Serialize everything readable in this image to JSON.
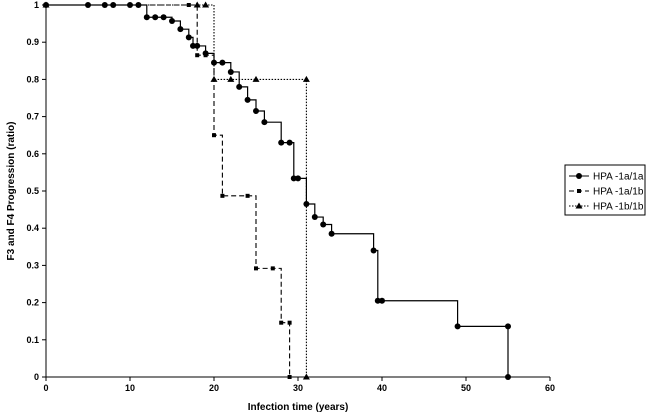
{
  "chart_data": {
    "type": "line",
    "title": "",
    "xlabel": "Infection time (years)",
    "ylabel": "F3 and F4 Progression (ratio)",
    "xlim": [
      0,
      60
    ],
    "ylim": [
      0,
      1
    ],
    "x_ticks": [
      0,
      10,
      20,
      30,
      40,
      50,
      60
    ],
    "y_ticks": [
      0,
      0.1,
      0.2,
      0.3,
      0.4,
      0.5,
      0.6,
      0.7,
      0.8,
      0.9,
      1
    ],
    "grid": false,
    "legend_position": "right",
    "step": true,
    "series": [
      {
        "name": "HPA -1a/1a",
        "line_style": "solid",
        "marker": "circle",
        "color": "#000000",
        "x": [
          0,
          5,
          7,
          8,
          10,
          11,
          12,
          13,
          14,
          15,
          16,
          17,
          17.5,
          18,
          19,
          20,
          21,
          22,
          23,
          24,
          25,
          26,
          28,
          29,
          29.5,
          30,
          31,
          32,
          33,
          34,
          39,
          39.5,
          40,
          49,
          55,
          55
        ],
        "y": [
          1,
          1,
          1,
          1,
          1,
          1,
          0.967,
          0.967,
          0.967,
          0.957,
          0.935,
          0.913,
          0.89,
          0.89,
          0.87,
          0.845,
          0.845,
          0.82,
          0.78,
          0.745,
          0.715,
          0.685,
          0.63,
          0.63,
          0.534,
          0.534,
          0.465,
          0.43,
          0.41,
          0.385,
          0.34,
          0.205,
          0.205,
          0.136,
          0.136,
          0
        ]
      },
      {
        "name": "HPA -1a/1b",
        "line_style": "dashed",
        "marker": "square",
        "color": "#000000",
        "x": [
          0,
          17,
          18,
          19,
          20,
          21,
          24,
          25,
          27,
          28,
          29
        ],
        "y": [
          1,
          1,
          0.865,
          0.865,
          0.65,
          0.487,
          0.487,
          0.292,
          0.292,
          0.146,
          0.146
        ],
        "end_x": 29,
        "end_y": 0
      },
      {
        "name": "HPA -1b/1b",
        "line_style": "dotted",
        "marker": "triangle",
        "color": "#000000",
        "x": [
          0,
          18,
          19,
          20,
          22,
          25,
          31,
          31
        ],
        "y": [
          1,
          1,
          1,
          0.8,
          0.8,
          0.8,
          0.8,
          0
        ]
      }
    ]
  }
}
